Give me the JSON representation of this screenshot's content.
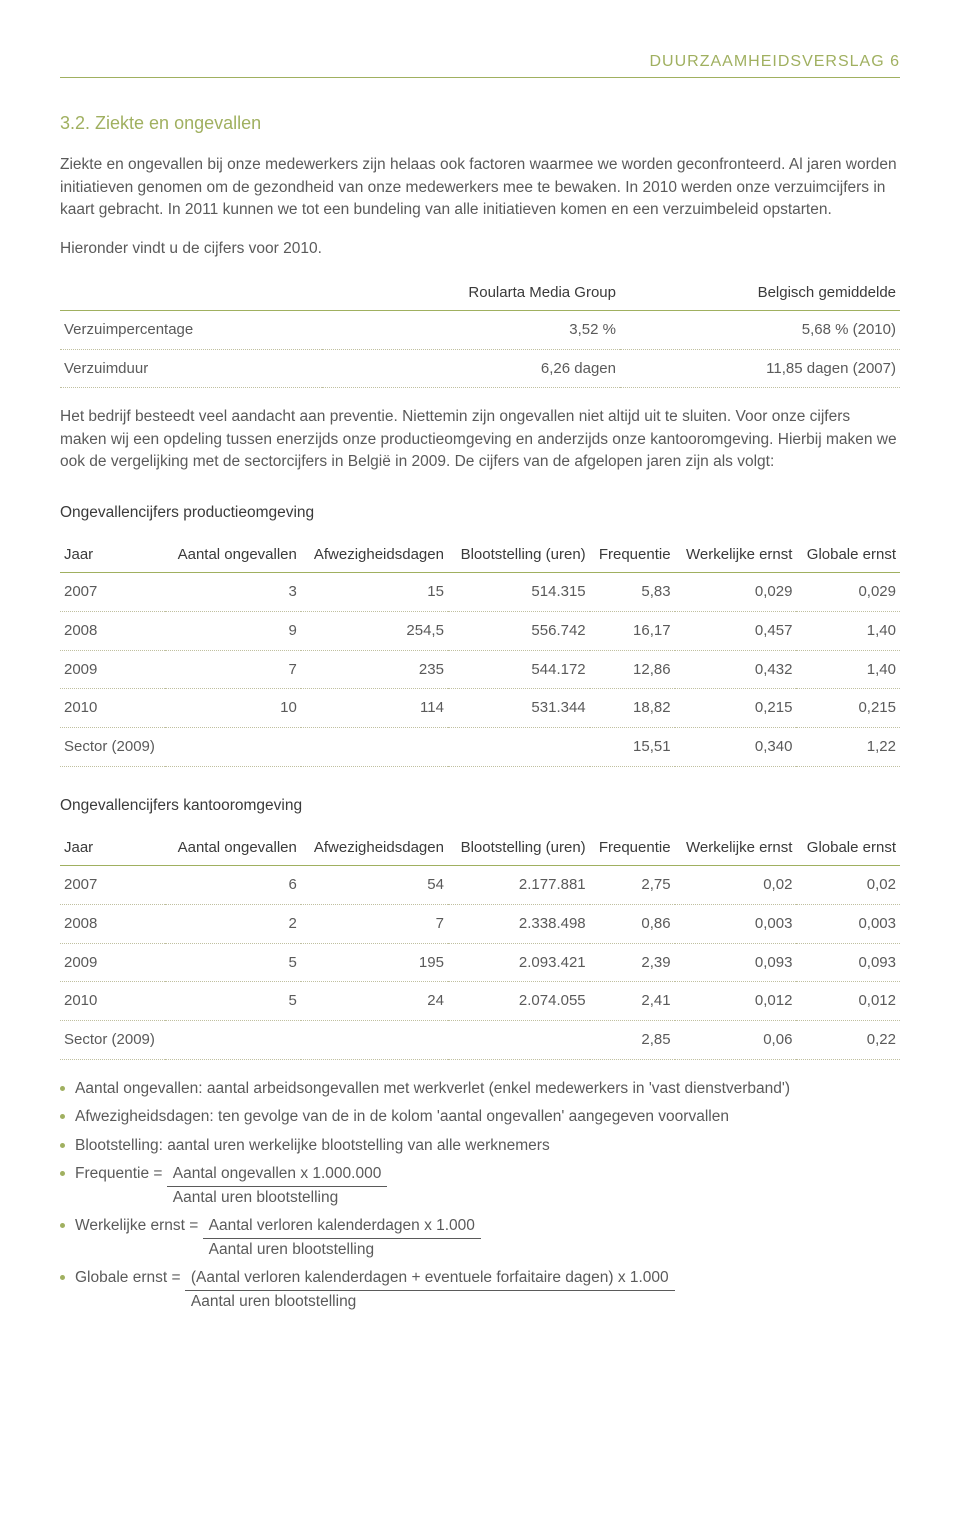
{
  "header": {
    "title": "DUURZAAMHEIDSVERSLAG 6"
  },
  "section": {
    "number_title": "3.2. Ziekte en ongevallen",
    "intro": "Ziekte en ongevallen bij onze medewerkers zijn helaas ook factoren waarmee we worden geconfronteerd. Al jaren worden initiatieven genomen om de gezondheid van onze medewerkers mee te bewaken. In 2010 werden onze verzuimcijfers in kaart gebracht. In 2011 kunnen we tot een bundeling van alle initiatieven komen en een verzuimbeleid opstarten.",
    "intro2": "Hieronder vindt u de cijfers voor 2010."
  },
  "table1": {
    "headers": [
      "",
      "Roularta Media Group",
      "Belgisch gemiddelde"
    ],
    "rows": [
      [
        "Verzuimpercentage",
        "3,52 %",
        "5,68 % (2010)"
      ],
      [
        "Verzuimduur",
        "6,26 dagen",
        "11,85 dagen (2007)"
      ]
    ]
  },
  "para_mid": "Het bedrijf besteedt veel aandacht aan preventie. Niettemin zijn ongevallen niet altijd uit te sluiten. Voor onze cijfers maken wij een opdeling tussen enerzijds onze productieomgeving en anderzijds onze kantooromgeving. Hierbij maken we ook de vergelijking met de sectorcijfers in België in 2009. De cijfers van de afgelopen jaren zijn als volgt:",
  "table2": {
    "title": "Ongevallencijfers productieomgeving",
    "headers": [
      "Jaar",
      "Aantal ongevallen",
      "Afwezigheids­dagen",
      "Blootstelling (uren)",
      "Frequentie",
      "Werkelijke ernst",
      "Globale ernst"
    ],
    "rows": [
      [
        "2007",
        "3",
        "15",
        "514.315",
        "5,83",
        "0,029",
        "0,029"
      ],
      [
        "2008",
        "9",
        "254,5",
        "556.742",
        "16,17",
        "0,457",
        "1,40"
      ],
      [
        "2009",
        "7",
        "235",
        "544.172",
        "12,86",
        "0,432",
        "1,40"
      ],
      [
        "2010",
        "10",
        "114",
        "531.344",
        "18,82",
        "0,215",
        "0,215"
      ],
      [
        "Sector (2009)",
        "",
        "",
        "",
        "15,51",
        "0,340",
        "1,22"
      ]
    ]
  },
  "table3": {
    "title": "Ongevallencijfers kantooromgeving",
    "headers": [
      "Jaar",
      "Aantal ongevallen",
      "Afwezigheids­dagen",
      "Blootstelling (uren)",
      "Frequentie",
      "Werkelijke ernst",
      "Globale ernst"
    ],
    "rows": [
      [
        "2007",
        "6",
        "54",
        "2.177.881",
        "2,75",
        "0,02",
        "0,02"
      ],
      [
        "2008",
        "2",
        "7",
        "2.338.498",
        "0,86",
        "0,003",
        "0,003"
      ],
      [
        "2009",
        "5",
        "195",
        "2.093.421",
        "2,39",
        "0,093",
        "0,093"
      ],
      [
        "2010",
        "5",
        "24",
        "2.074.055",
        "2,41",
        "0,012",
        "0,012"
      ],
      [
        "Sector (2009)",
        "",
        "",
        "",
        "2,85",
        "0,06",
        "0,22"
      ]
    ]
  },
  "legend": {
    "items": [
      "Aantal ongevallen: aantal arbeidsongevallen met werkverlet (enkel medewerkers in 'vast dienstverband')",
      "Afwezigheidsdagen: ten gevolge van de in de kolom 'aantal ongevallen' aangegeven voorvallen",
      "Blootstelling: aantal uren werkelijke blootstelling van alle werknemers"
    ],
    "frequentie_label": "Frequentie = ",
    "frequentie_num": "Aantal ongevallen x 1.000.000",
    "frequentie_den": "Aantal uren blootstelling",
    "werkelijke_label": "Werkelijke ernst = ",
    "werkelijke_num": "Aantal verloren kalenderdagen x 1.000",
    "werkelijke_den": "Aantal uren blootstelling",
    "globale_label": "Globale ernst = ",
    "globale_num": "(Aantal verloren kalenderdagen + eventuele forfaitaire dagen) x 1.000",
    "globale_den": "Aantal uren blootstelling"
  }
}
